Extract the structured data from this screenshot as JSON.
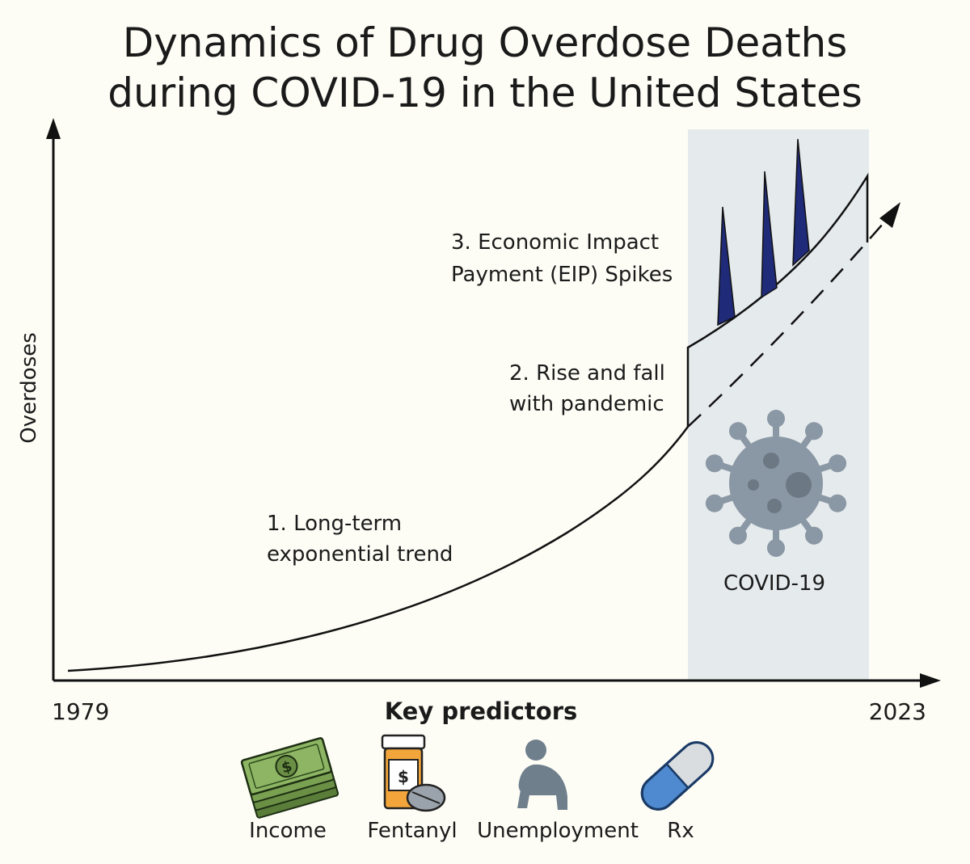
{
  "title": {
    "line1": "Dynamics of Drug Overdose Deaths",
    "line2": "during COVID-19 in the United States"
  },
  "axes": {
    "y_label": "Overdoses",
    "x_start": "1979",
    "x_end": "2023",
    "x_label": "Key predictors"
  },
  "annotations": {
    "trend": [
      "1. Long-term",
      "exponential trend"
    ],
    "pandemic": [
      "2. Rise and fall",
      "with pandemic"
    ],
    "eip": [
      "3. Economic Impact",
      "Payment (EIP) Spikes"
    ]
  },
  "covid_region": {
    "label": "COVID-19",
    "icon": "virus-icon",
    "fill": "#e5eaec",
    "virus_color": "#8a97a4"
  },
  "spikes": {
    "count": 3,
    "fill": "#1f2a78"
  },
  "predictors": [
    {
      "label": "Income",
      "icon": "money-stack-icon"
    },
    {
      "label": "Fentanyl",
      "icon": "pill-bottle-icon"
    },
    {
      "label": "Unemployment",
      "icon": "sitting-person-icon"
    },
    {
      "label": "Rx",
      "icon": "capsule-icon"
    }
  ]
}
